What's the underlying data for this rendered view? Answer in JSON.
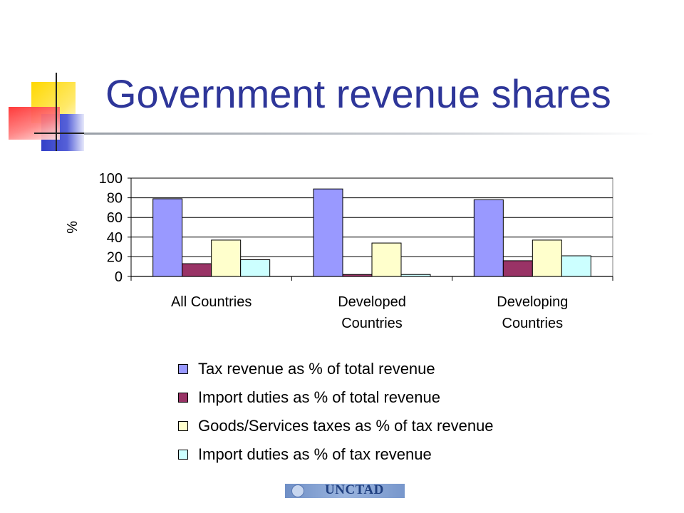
{
  "title": "Government revenue shares",
  "footer": {
    "org": "UNCTAD"
  },
  "chart_data": {
    "type": "bar",
    "ylabel": "%",
    "ylim": [
      0,
      100
    ],
    "yticks": [
      "100",
      "80",
      "60",
      "40",
      "20",
      "0"
    ],
    "grid": true,
    "legend_position": "bottom",
    "categories": [
      [
        "All Countries"
      ],
      [
        "Developed",
        "Countries"
      ],
      [
        "Developing",
        "Countries"
      ]
    ],
    "series": [
      {
        "name": "Tax revenue as % of total revenue",
        "color": "#9999ff",
        "values": [
          79,
          89,
          78
        ]
      },
      {
        "name": "Import duties as % of total revenue",
        "color": "#993366",
        "values": [
          13,
          2,
          16
        ]
      },
      {
        "name": "Goods/Services taxes as % of tax revenue",
        "color": "#ffffcc",
        "values": [
          37,
          34,
          37
        ]
      },
      {
        "name": "Import duties as % of tax revenue",
        "color": "#ccffff",
        "values": [
          17,
          2,
          21
        ]
      }
    ]
  }
}
